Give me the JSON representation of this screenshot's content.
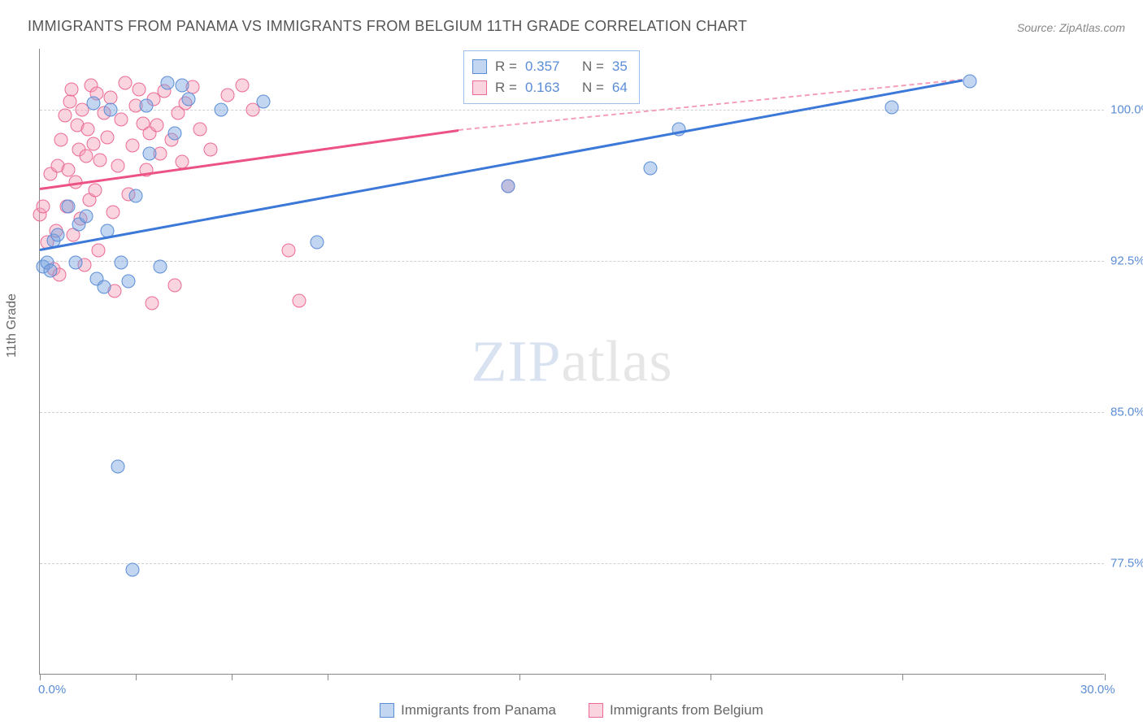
{
  "title": "IMMIGRANTS FROM PANAMA VS IMMIGRANTS FROM BELGIUM 11TH GRADE CORRELATION CHART",
  "source_label": "Source: ",
  "source_value": "ZipAtlas.com",
  "y_axis_label": "11th Grade",
  "watermark": {
    "zip": "ZIP",
    "atlas": "atlas"
  },
  "chart": {
    "type": "scatter",
    "xlim": [
      0,
      30
    ],
    "ylim": [
      72,
      103
    ],
    "x_ticks_at": [
      0,
      2.7,
      5.4,
      8.1,
      13.5,
      18.9,
      24.3,
      30
    ],
    "x_ticks_labeled": {
      "0": "0.0%",
      "30": "30.0%"
    },
    "y_gridlines": [
      77.5,
      85.0,
      92.5,
      100.0
    ],
    "y_tick_labels": [
      "77.5%",
      "85.0%",
      "92.5%",
      "100.0%"
    ],
    "grid_color": "#d0d0d0",
    "background_color": "#ffffff",
    "axis_color": "#888888",
    "tick_label_color": "#5b8dd6"
  },
  "series": {
    "panama": {
      "label": "Immigrants from Panama",
      "marker_fill": "rgba(120,165,225,0.45)",
      "marker_stroke": "#5b8dd6",
      "line_color": "#3b78d8",
      "R": "0.357",
      "N": "35",
      "trend": {
        "x1": 0,
        "y1": 93.1,
        "x2": 26,
        "y2": 101.5
      },
      "points": [
        [
          0.1,
          92.2
        ],
        [
          0.2,
          92.4
        ],
        [
          0.3,
          92.0
        ],
        [
          0.4,
          93.5
        ],
        [
          0.5,
          93.8
        ],
        [
          0.8,
          95.2
        ],
        [
          1.0,
          92.4
        ],
        [
          1.1,
          94.3
        ],
        [
          1.3,
          94.7
        ],
        [
          1.5,
          100.3
        ],
        [
          1.6,
          91.6
        ],
        [
          1.8,
          91.2
        ],
        [
          1.9,
          94.0
        ],
        [
          2.0,
          100.0
        ],
        [
          2.2,
          82.3
        ],
        [
          2.3,
          92.4
        ],
        [
          2.5,
          91.5
        ],
        [
          2.6,
          77.2
        ],
        [
          2.7,
          95.7
        ],
        [
          3.0,
          100.2
        ],
        [
          3.1,
          97.8
        ],
        [
          3.4,
          92.2
        ],
        [
          3.6,
          101.3
        ],
        [
          3.8,
          98.8
        ],
        [
          4.0,
          101.2
        ],
        [
          4.2,
          100.5
        ],
        [
          5.1,
          100.0
        ],
        [
          6.3,
          100.4
        ],
        [
          7.8,
          93.4
        ],
        [
          12.2,
          101.0
        ],
        [
          13.2,
          96.2
        ],
        [
          17.2,
          97.1
        ],
        [
          18.0,
          99.0
        ],
        [
          24.0,
          100.1
        ],
        [
          26.2,
          101.4
        ]
      ]
    },
    "belgium": {
      "label": "Immigrants from Belgium",
      "marker_fill": "rgba(244,160,185,0.45)",
      "marker_stroke": "#ec6a94",
      "line_color": "#ec5283",
      "line_dash_color": "#f4a0b9",
      "R": "0.163",
      "N": "64",
      "trend_solid": {
        "x1": 0,
        "y1": 96.1,
        "x2": 11.8,
        "y2": 99.0
      },
      "trend_dash": {
        "x1": 11.8,
        "y1": 99.0,
        "x2": 26,
        "y2": 101.5
      },
      "points": [
        [
          0.0,
          94.8
        ],
        [
          0.1,
          95.2
        ],
        [
          0.2,
          93.4
        ],
        [
          0.3,
          96.8
        ],
        [
          0.4,
          92.1
        ],
        [
          0.45,
          94.0
        ],
        [
          0.5,
          97.2
        ],
        [
          0.55,
          91.8
        ],
        [
          0.6,
          98.5
        ],
        [
          0.7,
          99.7
        ],
        [
          0.75,
          95.2
        ],
        [
          0.8,
          97.0
        ],
        [
          0.85,
          100.4
        ],
        [
          0.9,
          101.0
        ],
        [
          0.95,
          93.8
        ],
        [
          1.0,
          96.4
        ],
        [
          1.05,
          99.2
        ],
        [
          1.1,
          98.0
        ],
        [
          1.15,
          94.6
        ],
        [
          1.2,
          100.0
        ],
        [
          1.25,
          92.3
        ],
        [
          1.3,
          97.7
        ],
        [
          1.35,
          99.0
        ],
        [
          1.4,
          95.5
        ],
        [
          1.45,
          101.2
        ],
        [
          1.5,
          98.3
        ],
        [
          1.55,
          96.0
        ],
        [
          1.6,
          100.8
        ],
        [
          1.65,
          93.0
        ],
        [
          1.7,
          97.5
        ],
        [
          1.8,
          99.8
        ],
        [
          1.9,
          98.6
        ],
        [
          2.0,
          100.6
        ],
        [
          2.05,
          94.9
        ],
        [
          2.1,
          91.0
        ],
        [
          2.2,
          97.2
        ],
        [
          2.3,
          99.5
        ],
        [
          2.4,
          101.3
        ],
        [
          2.5,
          95.8
        ],
        [
          2.6,
          98.2
        ],
        [
          2.7,
          100.2
        ],
        [
          2.8,
          101.0
        ],
        [
          2.9,
          99.3
        ],
        [
          3.0,
          97.0
        ],
        [
          3.1,
          98.8
        ],
        [
          3.15,
          90.4
        ],
        [
          3.2,
          100.5
        ],
        [
          3.3,
          99.2
        ],
        [
          3.4,
          97.8
        ],
        [
          3.5,
          100.9
        ],
        [
          3.7,
          98.5
        ],
        [
          3.8,
          91.3
        ],
        [
          3.9,
          99.8
        ],
        [
          4.0,
          97.4
        ],
        [
          4.1,
          100.3
        ],
        [
          4.3,
          101.1
        ],
        [
          4.5,
          99.0
        ],
        [
          4.8,
          98.0
        ],
        [
          5.3,
          100.7
        ],
        [
          5.7,
          101.2
        ],
        [
          6.0,
          100.0
        ],
        [
          7.0,
          93.0
        ],
        [
          7.3,
          90.5
        ],
        [
          13.2,
          96.2
        ]
      ]
    }
  },
  "legend_box": {
    "r_prefix": "R = ",
    "n_prefix": "N = "
  },
  "legend_bottom": {
    "panama": "Immigrants from Panama",
    "belgium": "Immigrants from Belgium"
  }
}
